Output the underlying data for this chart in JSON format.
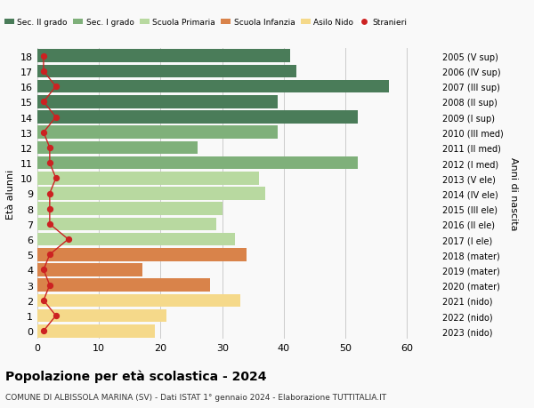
{
  "ages": [
    18,
    17,
    16,
    15,
    14,
    13,
    12,
    11,
    10,
    9,
    8,
    7,
    6,
    5,
    4,
    3,
    2,
    1,
    0
  ],
  "right_labels": [
    "2005 (V sup)",
    "2006 (IV sup)",
    "2007 (III sup)",
    "2008 (II sup)",
    "2009 (I sup)",
    "2010 (III med)",
    "2011 (II med)",
    "2012 (I med)",
    "2013 (V ele)",
    "2014 (IV ele)",
    "2015 (III ele)",
    "2016 (II ele)",
    "2017 (I ele)",
    "2018 (mater)",
    "2019 (mater)",
    "2020 (mater)",
    "2021 (nido)",
    "2022 (nido)",
    "2023 (nido)"
  ],
  "bar_values": [
    41,
    42,
    57,
    39,
    52,
    39,
    26,
    52,
    36,
    37,
    30,
    29,
    32,
    34,
    17,
    28,
    33,
    21,
    19
  ],
  "bar_colors": [
    "#4a7c59",
    "#4a7c59",
    "#4a7c59",
    "#4a7c59",
    "#4a7c59",
    "#7fb07a",
    "#7fb07a",
    "#7fb07a",
    "#b8d9a0",
    "#b8d9a0",
    "#b8d9a0",
    "#b8d9a0",
    "#b8d9a0",
    "#d9834a",
    "#d9834a",
    "#d9834a",
    "#f5d98a",
    "#f5d98a",
    "#f5d98a"
  ],
  "stranieri_values": [
    1,
    1,
    3,
    1,
    3,
    1,
    2,
    2,
    3,
    2,
    2,
    2,
    5,
    2,
    1,
    2,
    1,
    3,
    1
  ],
  "legend_labels": [
    "Sec. II grado",
    "Sec. I grado",
    "Scuola Primaria",
    "Scuola Infanzia",
    "Asilo Nido",
    "Stranieri"
  ],
  "legend_colors": [
    "#4a7c59",
    "#7fb07a",
    "#b8d9a0",
    "#d9834a",
    "#f5d98a",
    "#cc2222"
  ],
  "xlabel_values": [
    0,
    10,
    20,
    30,
    40,
    50,
    60
  ],
  "title": "Popolazione per età scolastica - 2024",
  "subtitle": "COMUNE DI ALBISSOLA MARINA (SV) - Dati ISTAT 1° gennaio 2024 - Elaborazione TUTTITALIA.IT",
  "ylabel_left": "Età alunni",
  "ylabel_right": "Anni di nascita",
  "xlim": [
    0,
    65
  ],
  "background_color": "#f9f9f9",
  "grid_color": "#cccccc"
}
